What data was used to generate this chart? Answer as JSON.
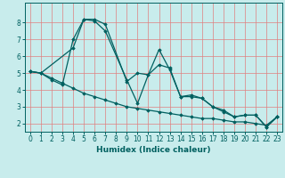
{
  "xlabel": "Humidex (Indice chaleur)",
  "xlim": [
    -0.5,
    23.5
  ],
  "ylim": [
    1.5,
    9.2
  ],
  "xticks": [
    0,
    1,
    2,
    3,
    4,
    5,
    6,
    7,
    8,
    9,
    10,
    11,
    12,
    13,
    14,
    15,
    16,
    17,
    18,
    19,
    20,
    21,
    22,
    23
  ],
  "yticks": [
    2,
    3,
    4,
    5,
    6,
    7,
    8
  ],
  "background_color": "#c8ecec",
  "grid_color": "#e08080",
  "line_color": "#006060",
  "line1_x": [
    0,
    1,
    2,
    3,
    4,
    5,
    6,
    7,
    8,
    9,
    10,
    11,
    12,
    13,
    14,
    15,
    16,
    17,
    18,
    19,
    20,
    21,
    22,
    23
  ],
  "line1_y": [
    5.1,
    5.0,
    4.7,
    4.4,
    4.1,
    3.8,
    3.6,
    3.4,
    3.2,
    3.0,
    2.9,
    2.8,
    2.7,
    2.6,
    2.5,
    2.4,
    2.3,
    2.3,
    2.2,
    2.1,
    2.1,
    2.0,
    1.9,
    2.4
  ],
  "line2_x": [
    0,
    1,
    2,
    3,
    4,
    5,
    6,
    7,
    9,
    10,
    11,
    12,
    13,
    14,
    15,
    16,
    17,
    18,
    19,
    20,
    21,
    22,
    23
  ],
  "line2_y": [
    5.1,
    5.0,
    4.6,
    4.3,
    7.0,
    8.2,
    8.1,
    7.5,
    4.6,
    3.2,
    4.9,
    5.5,
    5.3,
    3.6,
    3.7,
    3.5,
    3.0,
    2.8,
    2.4,
    2.5,
    2.5,
    1.8,
    2.4
  ],
  "line3_x": [
    0,
    1,
    4,
    5,
    6,
    7,
    9,
    10,
    11,
    12,
    13,
    14,
    15,
    16,
    17,
    18,
    19,
    20,
    21,
    22,
    23
  ],
  "line3_y": [
    5.1,
    5.0,
    6.5,
    8.2,
    8.2,
    7.9,
    4.5,
    5.0,
    4.9,
    6.4,
    5.2,
    3.6,
    3.6,
    3.5,
    3.0,
    2.7,
    2.4,
    2.5,
    2.5,
    1.8,
    2.4
  ],
  "figsize": [
    3.2,
    2.0
  ],
  "dpi": 100
}
